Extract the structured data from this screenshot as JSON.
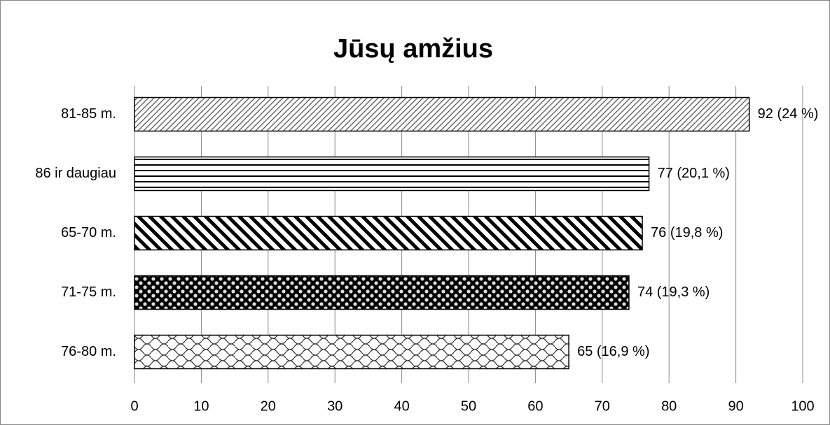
{
  "chart_data": {
    "type": "bar",
    "orientation": "horizontal",
    "title": "Jūsų amžius",
    "categories": [
      "81-85 m.",
      "86 ir daugiau",
      "65-70 m.",
      "71-75 m.",
      "76-80 m."
    ],
    "values": [
      92,
      77,
      76,
      74,
      65
    ],
    "value_labels": [
      "92 (24 %)",
      "77 (20,1 %)",
      "76 (19,8 %)",
      "74 (19,3 %)",
      "65 (16,9 %)"
    ],
    "xlim": [
      0,
      100
    ],
    "xticks": [
      0,
      10,
      20,
      30,
      40,
      50,
      60,
      70,
      80,
      90,
      100
    ],
    "grid": true
  }
}
